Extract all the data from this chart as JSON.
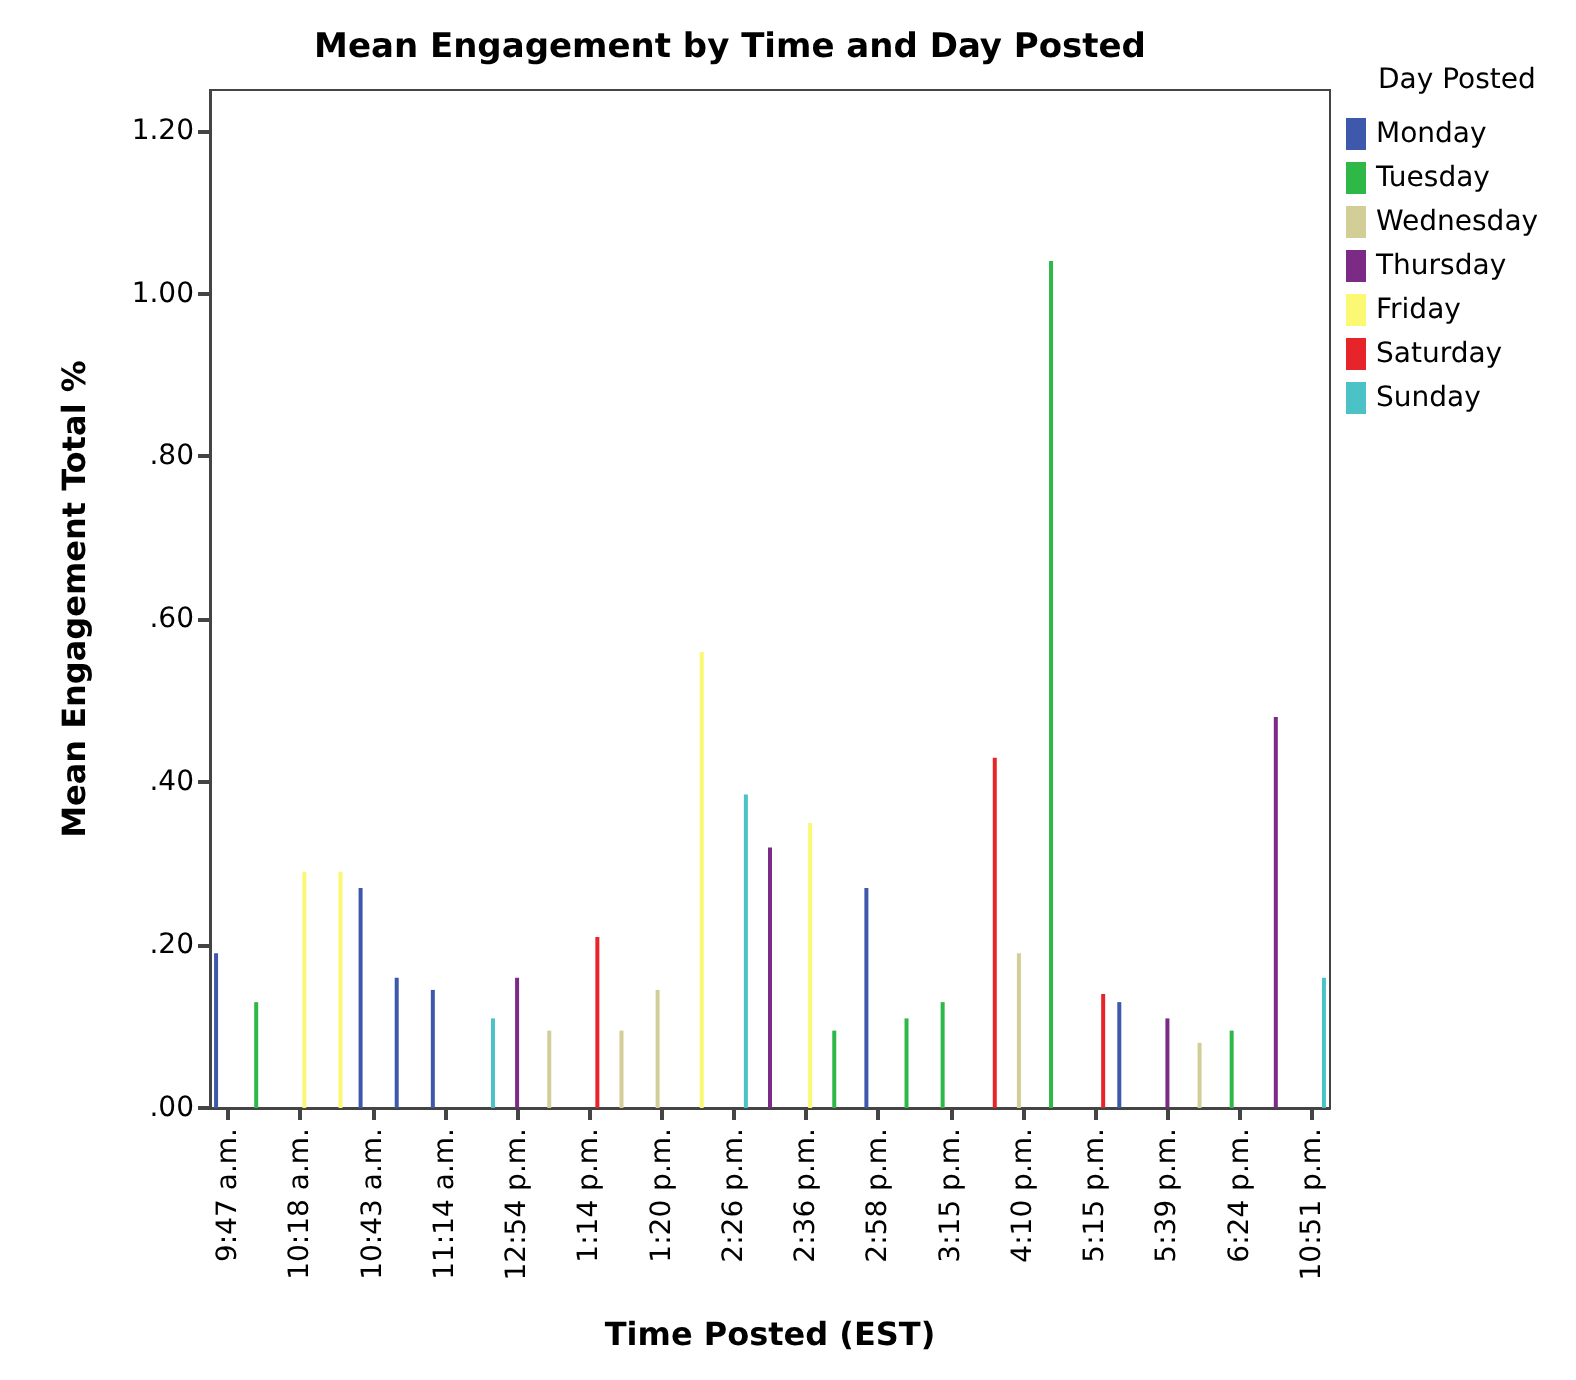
{
  "chart_data": {
    "type": "bar",
    "title": "Mean Engagement by Time and Day Posted",
    "xlabel": "Time Posted (EST)",
    "ylabel": "Mean Engagement Total %",
    "legend_title": "Day Posted",
    "legend": "top right",
    "grid": false,
    "categories": [
      "9:47 a.m.",
      null,
      "10:18 a.m.",
      null,
      "10:43 a.m.",
      null,
      "11:14 a.m.",
      null,
      "12:54 p.m.",
      null,
      "1:14 p.m.",
      null,
      "1:20 p.m.",
      null,
      "2:26 p.m.",
      null,
      "2:36 p.m.",
      null,
      "2:58 p.m.",
      null,
      "3:15 p.m.",
      null,
      "4:10 p.m.",
      null,
      "5:15 p.m.",
      null,
      "5:39 p.m.",
      null,
      "6:24 p.m.",
      null,
      "10:51 p.m."
    ],
    "ylim": [
      0,
      1.25
    ],
    "yticks": [
      {
        "value": 0,
        "label": ".00"
      },
      {
        "value": 0.2,
        "label": ".20"
      },
      {
        "value": 0.4,
        "label": ".40"
      },
      {
        "value": 0.6,
        "label": ".60"
      },
      {
        "value": 0.8,
        "label": ".80"
      },
      {
        "value": 1,
        "label": "1.00"
      },
      {
        "value": 1.2,
        "label": "1.20"
      }
    ],
    "series": [
      {
        "name": "Monday",
        "color": "#3e58ac",
        "values": [
          0.19,
          null,
          null,
          null,
          0.27,
          0.16,
          0.145,
          null,
          null,
          null,
          null,
          null,
          null,
          null,
          null,
          null,
          null,
          null,
          0.27,
          null,
          null,
          null,
          null,
          null,
          null,
          0.13,
          null,
          null,
          null,
          null,
          null
        ]
      },
      {
        "name": "Tuesday",
        "color": "#2eb848",
        "values": [
          null,
          0.13,
          null,
          null,
          null,
          null,
          null,
          null,
          null,
          null,
          null,
          null,
          null,
          null,
          null,
          null,
          null,
          0.095,
          null,
          0.11,
          0.13,
          null,
          null,
          1.04,
          null,
          null,
          null,
          null,
          0.095,
          null,
          null
        ]
      },
      {
        "name": "Wednesday",
        "color": "#d3ce97",
        "values": [
          null,
          null,
          null,
          null,
          null,
          null,
          null,
          null,
          null,
          0.095,
          null,
          0.095,
          0.145,
          null,
          null,
          null,
          null,
          null,
          null,
          null,
          null,
          null,
          0.19,
          null,
          null,
          null,
          null,
          0.08,
          null,
          null,
          null
        ]
      },
      {
        "name": "Thursday",
        "color": "#7b2a85",
        "values": [
          null,
          null,
          null,
          null,
          null,
          null,
          null,
          null,
          0.16,
          null,
          null,
          null,
          null,
          null,
          null,
          0.32,
          null,
          null,
          null,
          null,
          null,
          null,
          null,
          null,
          null,
          null,
          0.11,
          null,
          null,
          0.48,
          null
        ]
      },
      {
        "name": "Friday",
        "color": "#fbf873",
        "values": [
          null,
          null,
          0.29,
          0.29,
          null,
          null,
          null,
          null,
          null,
          null,
          null,
          null,
          null,
          0.56,
          null,
          null,
          0.35,
          null,
          null,
          null,
          null,
          null,
          null,
          null,
          null,
          null,
          null,
          null,
          null,
          null,
          null
        ]
      },
      {
        "name": "Saturday",
        "color": "#e8242b",
        "values": [
          null,
          null,
          null,
          null,
          null,
          null,
          null,
          null,
          null,
          null,
          0.21,
          null,
          null,
          null,
          null,
          null,
          null,
          null,
          null,
          null,
          null,
          0.43,
          null,
          null,
          0.14,
          null,
          null,
          null,
          null,
          null,
          null
        ]
      },
      {
        "name": "Sunday",
        "color": "#4bc2c5",
        "values": [
          null,
          null,
          null,
          null,
          null,
          null,
          null,
          0.11,
          null,
          null,
          null,
          null,
          null,
          null,
          0.385,
          null,
          null,
          null,
          null,
          null,
          null,
          null,
          null,
          null,
          null,
          null,
          null,
          null,
          null,
          null,
          0.16
        ]
      }
    ]
  }
}
